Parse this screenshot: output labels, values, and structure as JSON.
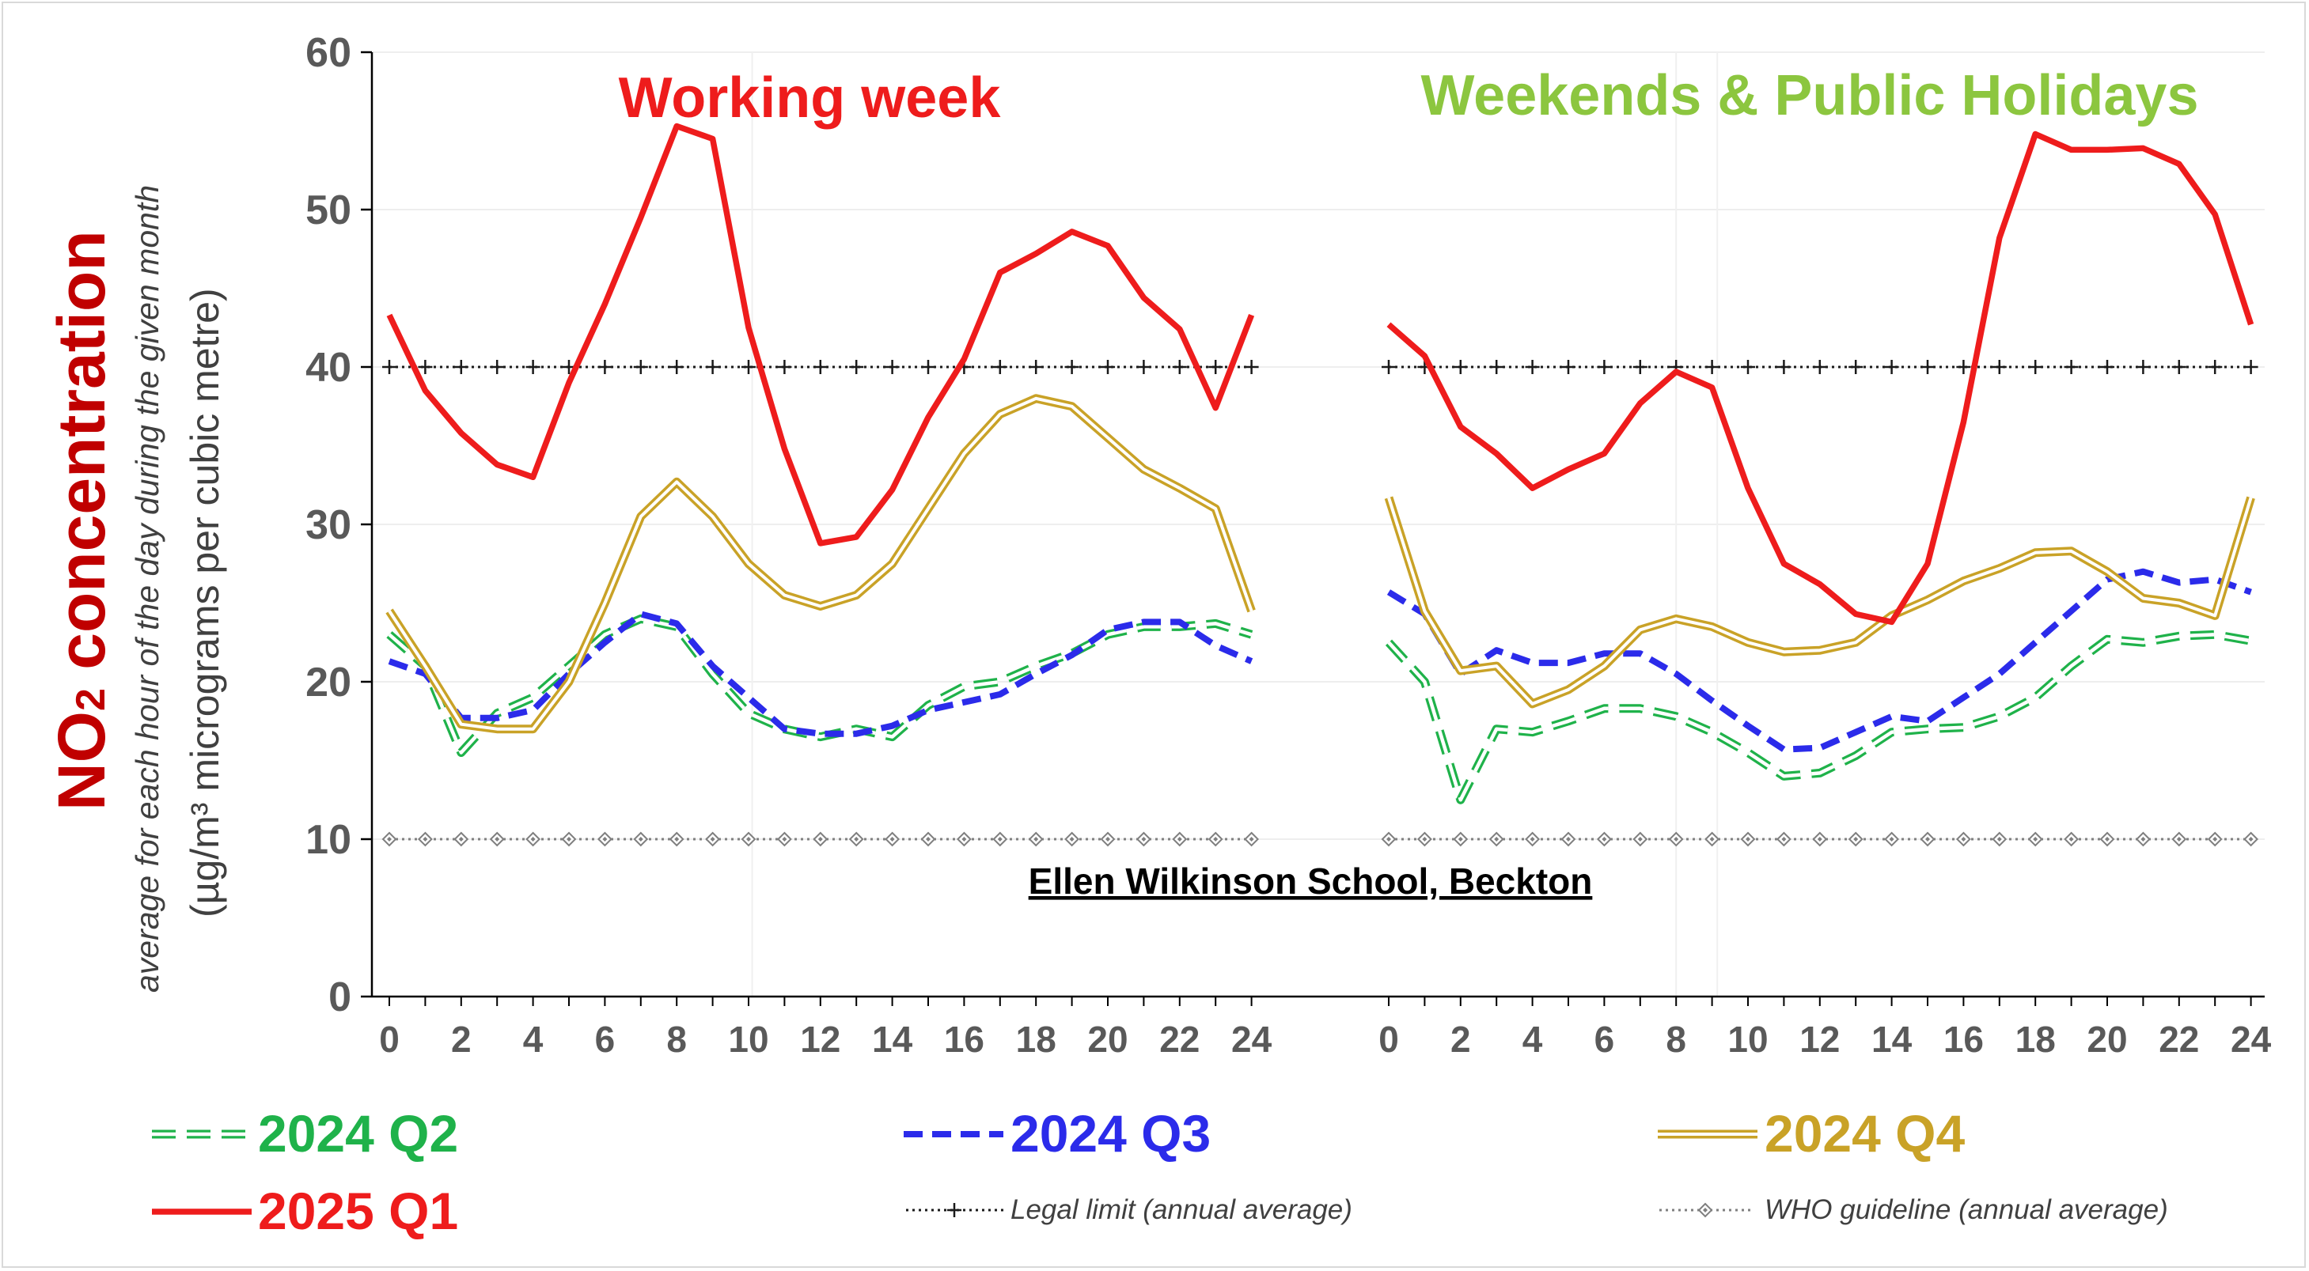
{
  "chart_data": {
    "type": "line",
    "ylim": [
      0,
      60
    ],
    "y_ticks": [
      0,
      10,
      20,
      30,
      40,
      50,
      60
    ],
    "x_ticks": [
      0,
      2,
      4,
      6,
      8,
      10,
      12,
      14,
      16,
      18,
      20,
      22,
      24
    ],
    "grid": true,
    "ylabel": {
      "main_prefix": "NO",
      "main_sub": "2",
      "main_suffix": " concentration",
      "line2": "average for each hour of the day during the given month",
      "line3": "(µg/m³ micrograms per cubic metre)"
    },
    "site_label": "Ellen Wilkinson School, Beckton",
    "colors": {
      "q2": "#1fb24a",
      "q3": "#2b2bea",
      "q4": "#c9a227",
      "q1": "#ee1c1c",
      "working_title": "#ee1c1c",
      "weekend_title": "#8cc63f",
      "axis_label_main": "#c00000",
      "axis_label_sub": "#404040"
    },
    "panels": [
      {
        "title": "Working week",
        "series": [
          {
            "key": "q2",
            "values": [
              23,
              21,
              15.5,
              18,
              19,
              21,
              23,
              24,
              23.5,
              20.5,
              18,
              17,
              16.5,
              17,
              16.5,
              18.5,
              19.7,
              20,
              21,
              21.8,
              23,
              23.5,
              23.5,
              23.7,
              23
            ]
          },
          {
            "key": "q3",
            "values": [
              21.3,
              20.5,
              17.7,
              17.7,
              18.2,
              20.5,
              22.5,
              24.3,
              23.7,
              21,
              19,
              17,
              16.7,
              16.7,
              17.2,
              18.2,
              18.7,
              19.2,
              20.5,
              21.7,
              23.3,
              23.8,
              23.8,
              22.3,
              21.3
            ]
          },
          {
            "key": "q4",
            "values": [
              24.5,
              21,
              17.3,
              17,
              17,
              20,
              25,
              30.5,
              32.7,
              30.5,
              27.5,
              25.5,
              24.8,
              25.5,
              27.5,
              31,
              34.5,
              37,
              38,
              37.5,
              35.5,
              33.5,
              32.3,
              31,
              24.5
            ]
          },
          {
            "key": "q1",
            "values": [
              43.3,
              38.5,
              35.8,
              33.8,
              33,
              39,
              44,
              49.5,
              55.3,
              54.5,
              42.5,
              34.8,
              28.8,
              29.2,
              32.2,
              36.8,
              40.5,
              46,
              47.2,
              48.6,
              47.7,
              44.4,
              42.4,
              37.4,
              43.3
            ]
          }
        ]
      },
      {
        "title": "Weekends & Public Holidays",
        "series": [
          {
            "key": "q2",
            "values": [
              22.5,
              20,
              12.5,
              17,
              16.8,
              17.5,
              18.3,
              18.3,
              17.8,
              16.8,
              15.5,
              14,
              14.2,
              15.3,
              16.8,
              17,
              17.1,
              17.8,
              19,
              21,
              22.7,
              22.5,
              22.9,
              23,
              22.6
            ]
          },
          {
            "key": "q3",
            "values": [
              25.7,
              24.3,
              20.5,
              22,
              21.2,
              21.2,
              21.8,
              21.8,
              20.5,
              18.8,
              17.2,
              15.7,
              15.8,
              16.8,
              17.8,
              17.5,
              19,
              20.5,
              22.5,
              24.5,
              26.5,
              27,
              26.3,
              26.5,
              25.7
            ]
          },
          {
            "key": "q4",
            "values": [
              31.7,
              24.5,
              20.7,
              21,
              18.6,
              19.5,
              21,
              23.3,
              24,
              23.5,
              22.5,
              21.9,
              22,
              22.5,
              24.2,
              25.2,
              26.4,
              27.2,
              28.2,
              28.3,
              27,
              25.3,
              25,
              24.2,
              31.7
            ]
          },
          {
            "key": "q1",
            "values": [
              42.7,
              40.7,
              36.2,
              34.5,
              32.3,
              33.5,
              34.5,
              37.7,
              39.7,
              38.7,
              32.3,
              27.5,
              26.2,
              24.3,
              23.8,
              27.5,
              36.5,
              48.2,
              54.8,
              53.8,
              53.8,
              53.9,
              52.9,
              49.7,
              42.7
            ]
          }
        ]
      }
    ],
    "references": [
      {
        "key": "legal",
        "value": 40,
        "label": "Legal limit (annual average)",
        "color": "#1a1a1a",
        "marker": "plus"
      },
      {
        "key": "who",
        "value": 10,
        "label": "WHO guideline (annual average)",
        "color": "#7f7f7f",
        "marker": "diamond"
      }
    ],
    "legend": [
      {
        "key": "q2",
        "label": "2024 Q2"
      },
      {
        "key": "q3",
        "label": "2024 Q3"
      },
      {
        "key": "q4",
        "label": "2024 Q4"
      },
      {
        "key": "q1",
        "label": "2025 Q1"
      }
    ]
  }
}
